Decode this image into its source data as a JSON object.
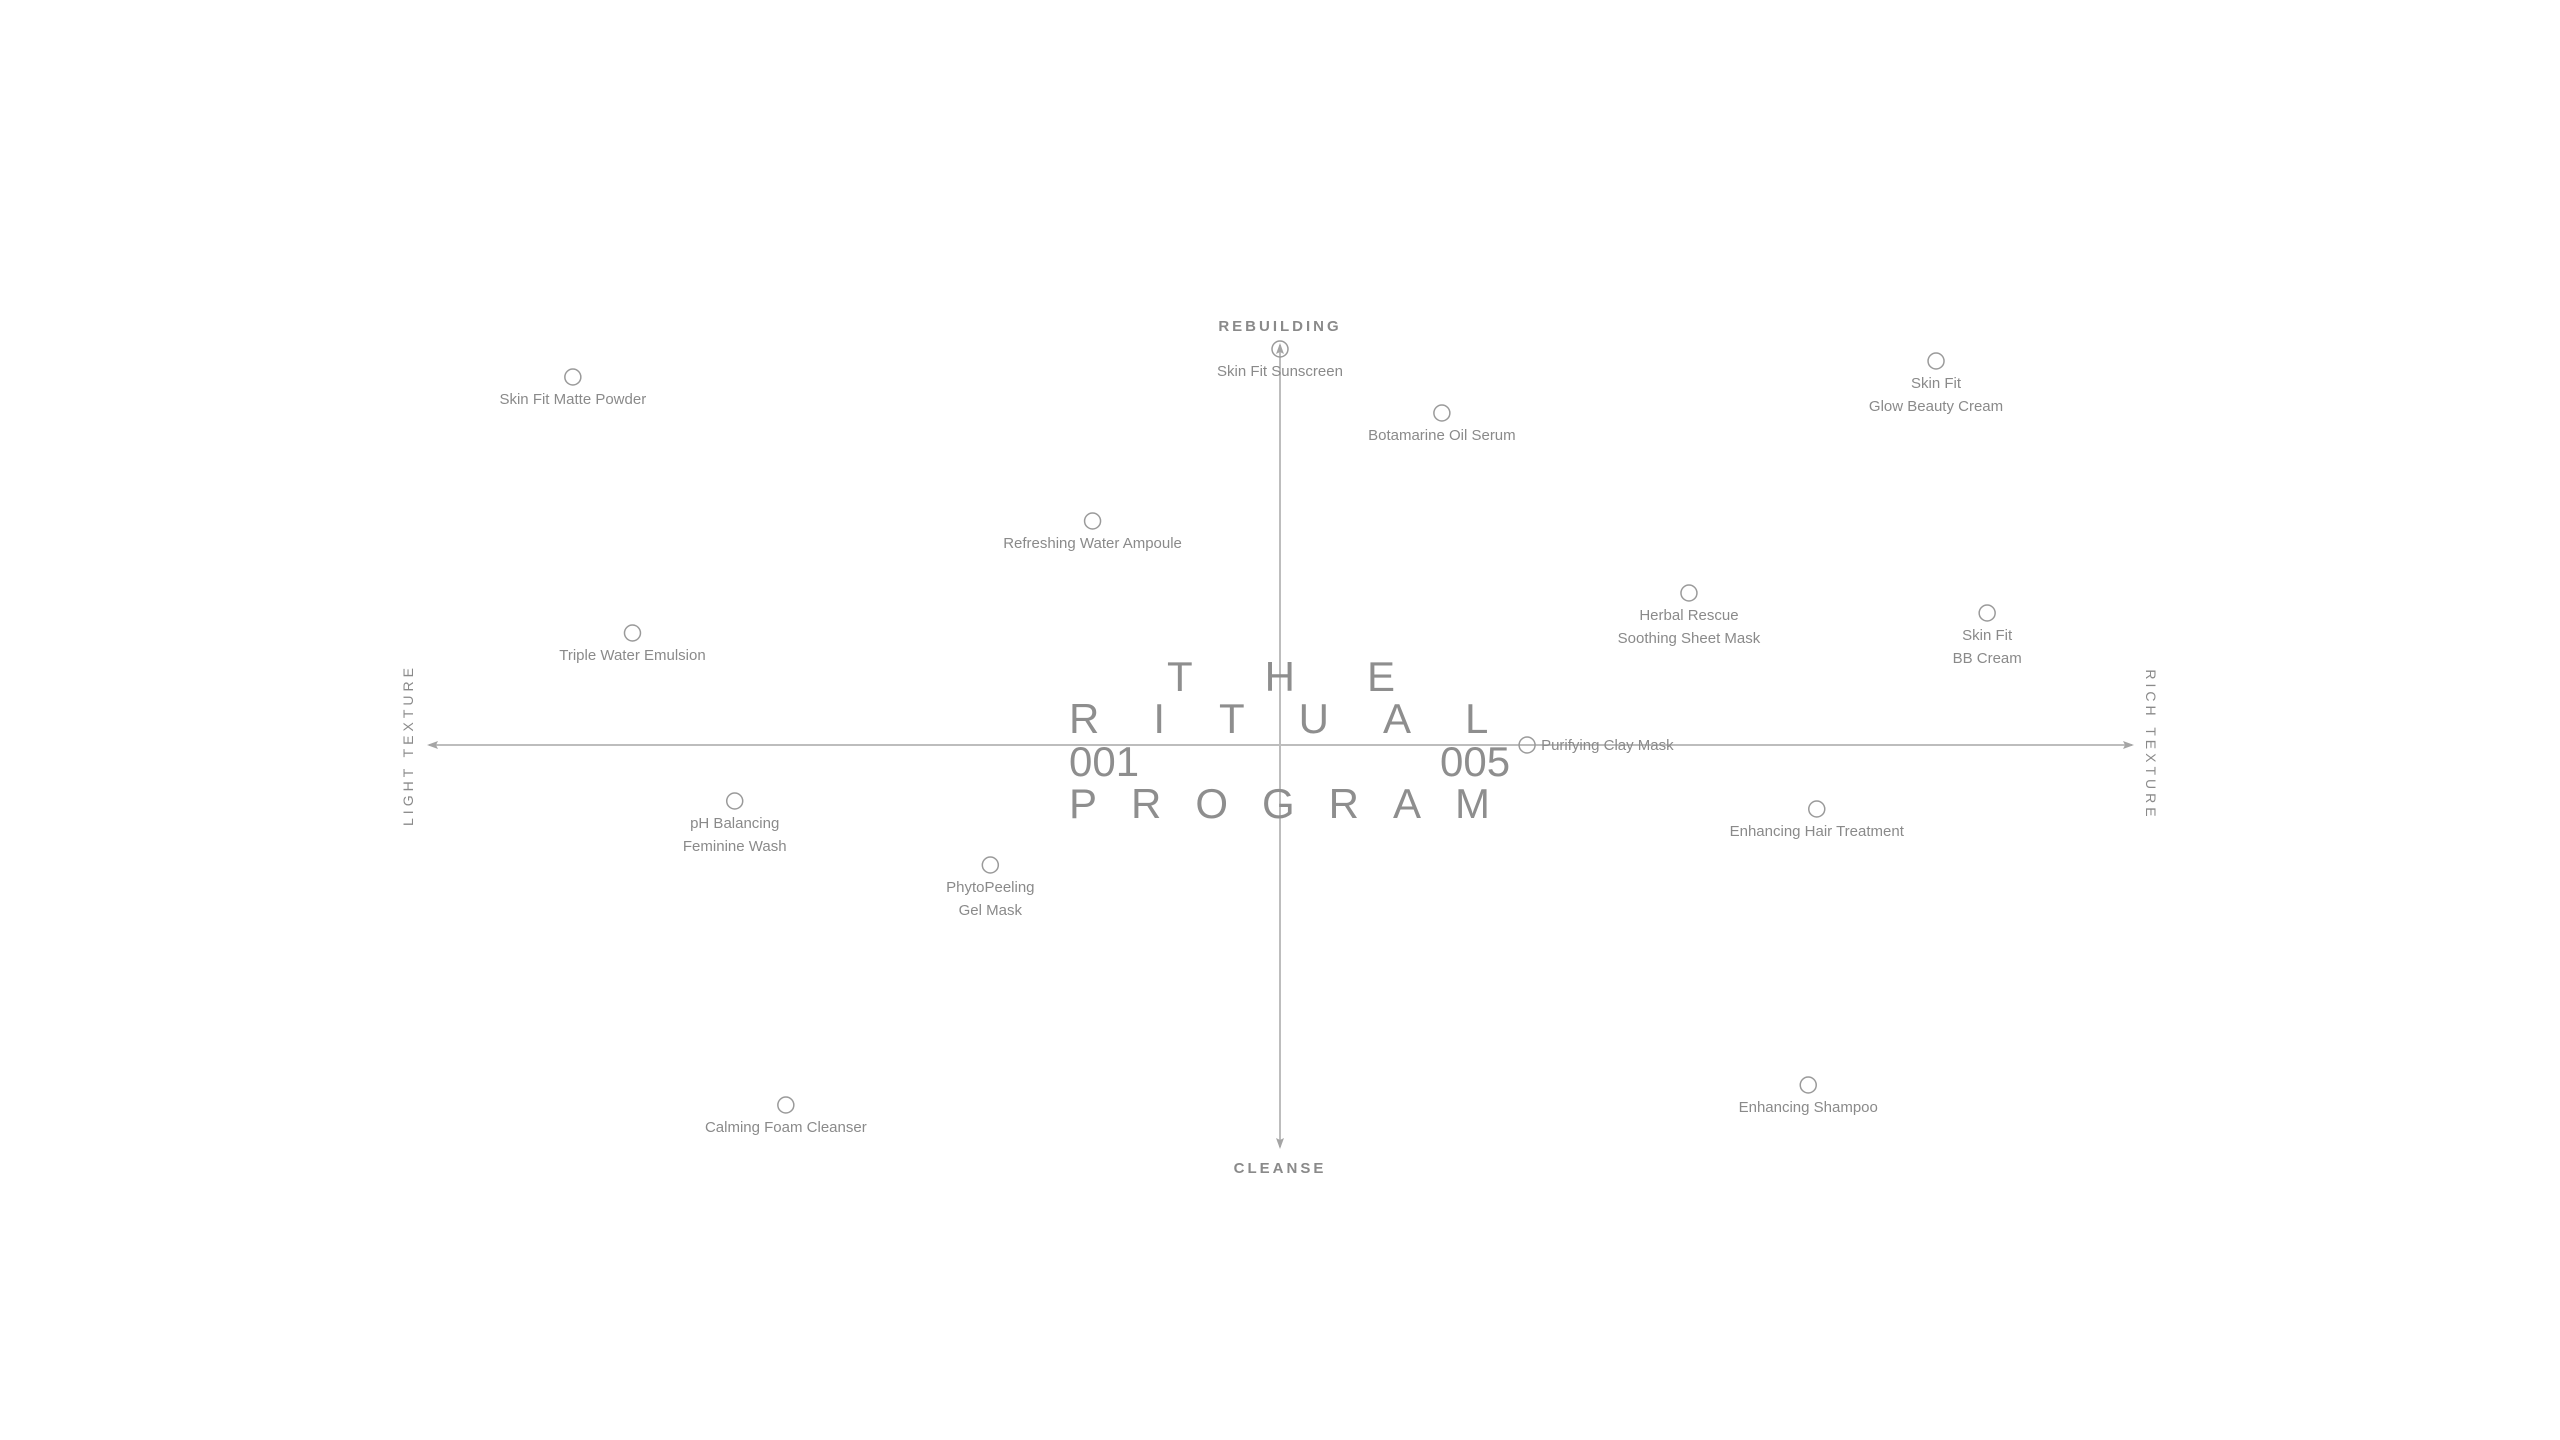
{
  "axes": {
    "top": "REBUILDING",
    "bottom": "CLEANSE",
    "left": "LIGHT TEXTURE",
    "right": "RICH TEXTURE"
  },
  "title": {
    "line1": "THE",
    "line2": "RITUAL",
    "number_left": "001",
    "number_right": "005",
    "line4": "PROGRAM"
  },
  "colors": {
    "axis": "#bdbdbd",
    "marker": "#9a9a9a",
    "text": "#8a8a8a"
  },
  "chart_data": {
    "type": "scatter",
    "xlabel_left": "LIGHT TEXTURE",
    "xlabel_right": "RICH TEXTURE",
    "ylabel_top": "REBUILDING",
    "ylabel_bottom": "CLEANSE",
    "xlim": [
      -1,
      1
    ],
    "ylim": [
      -1,
      1
    ],
    "grid": false,
    "points": [
      {
        "lines": [
          "Skin Fit Matte Powder"
        ],
        "x": -0.83,
        "y": 0.92
      },
      {
        "lines": [
          "Skin Fit Sunscreen"
        ],
        "x": 0.0,
        "y": 0.99
      },
      {
        "lines": [
          "Botamarine Oil Serum"
        ],
        "x": 0.19,
        "y": 0.83
      },
      {
        "lines": [
          "Skin Fit",
          "Glow Beauty Cream"
        ],
        "x": 0.77,
        "y": 0.96
      },
      {
        "lines": [
          "Refreshing Water Ampoule"
        ],
        "x": -0.22,
        "y": 0.56
      },
      {
        "lines": [
          "Herbal Rescue",
          "Soothing Sheet Mask"
        ],
        "x": 0.48,
        "y": 0.38
      },
      {
        "lines": [
          "Skin Fit",
          "BB Cream"
        ],
        "x": 0.83,
        "y": 0.33
      },
      {
        "lines": [
          "Triple Water Emulsion"
        ],
        "x": -0.76,
        "y": 0.28
      },
      {
        "lines": [
          "Purifying Clay Mask"
        ],
        "x": 0.29,
        "y": 0.0
      },
      {
        "lines": [
          "pH Balancing",
          "Feminine Wash"
        ],
        "x": -0.64,
        "y": -0.14
      },
      {
        "lines": [
          "Enhancing Hair Treatment"
        ],
        "x": 0.63,
        "y": -0.16
      },
      {
        "lines": [
          "PhytoPeeling",
          "Gel Mask"
        ],
        "x": -0.34,
        "y": -0.3
      },
      {
        "lines": [
          "Calming Foam Cleanser"
        ],
        "x": -0.58,
        "y": -0.9
      },
      {
        "lines": [
          "Enhancing Shampoo"
        ],
        "x": 0.62,
        "y": -0.85
      }
    ]
  }
}
